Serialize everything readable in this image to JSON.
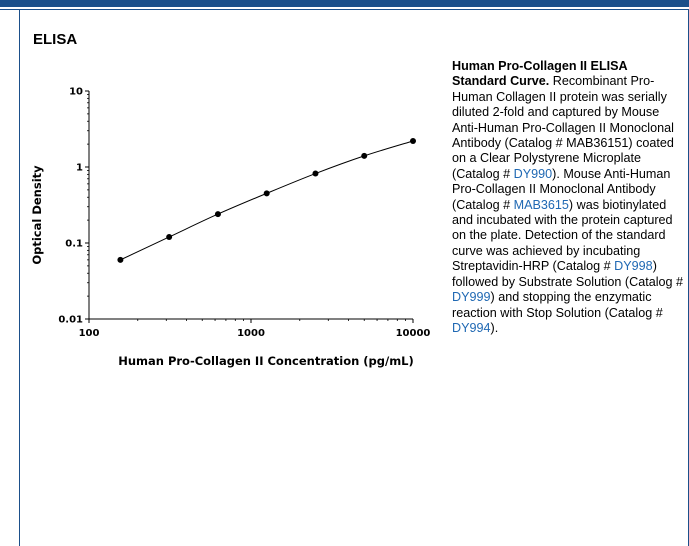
{
  "header": {
    "section_title": "ELISA"
  },
  "caption": {
    "title": "Human Pro-Collagen II ELISA Standard Curve.",
    "p1": " Recombinant Pro-Human Collagen II protein was serially diluted 2-fold and captured by Mouse Anti-Human Pro-Collagen II Monoclonal Antibody (Catalog # MAB36151) coated on a Clear Polystyrene Microplate (Catalog # ",
    "link1": "DY990",
    "p2": "). Mouse Anti-Human Pro-Collagen II Monoclonal Antibody (Catalog # ",
    "link2": "MAB3615",
    "p3": ") was biotinylated and incubated with the protein captured on the plate. Detection of the standard curve was achieved by incubating Streptavidin-HRP (Catalog # ",
    "link3": "DY998",
    "p4": ") followed by Substrate Solution (Catalog # ",
    "link4": "DY999",
    "p5": ") and stopping the enzymatic reaction with Stop Solution (Catalog # ",
    "link5": "DY994",
    "p6": ").",
    "link_color": "#1f68b3"
  },
  "chart_data": {
    "type": "scatter",
    "title": "",
    "xlabel": "Human Pro-Collagen II Concentration (pg/mL)",
    "ylabel": "Optical Density",
    "x_scale": "log",
    "y_scale": "log",
    "xlim": [
      100,
      10000
    ],
    "ylim": [
      0.01,
      10
    ],
    "x_ticks": [
      100,
      1000,
      10000
    ],
    "x_tick_labels": [
      "100",
      "1000",
      "10000"
    ],
    "y_ticks": [
      0.01,
      0.1,
      1,
      10
    ],
    "y_tick_labels": [
      "0.01",
      "0.1",
      "1",
      "10"
    ],
    "grid": false,
    "series": [
      {
        "x": [
          156.25,
          312.5,
          625,
          1250,
          2500,
          5000,
          10000
        ],
        "y": [
          0.06,
          0.12,
          0.24,
          0.45,
          0.82,
          1.4,
          2.2
        ],
        "fit_line": true
      }
    ]
  }
}
